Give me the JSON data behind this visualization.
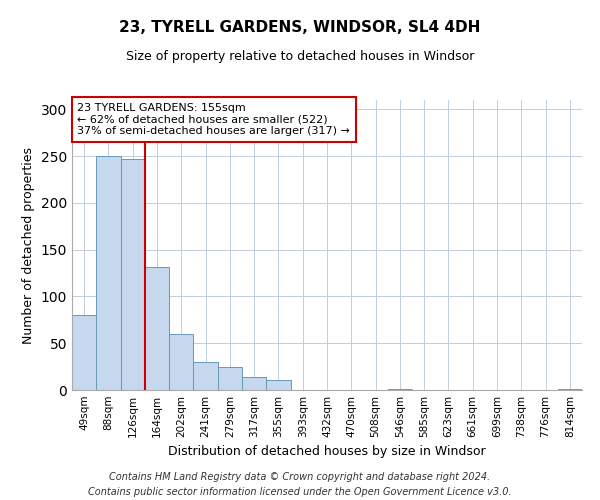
{
  "title": "23, TYRELL GARDENS, WINDSOR, SL4 4DH",
  "subtitle": "Size of property relative to detached houses in Windsor",
  "xlabel": "Distribution of detached houses by size in Windsor",
  "ylabel": "Number of detached properties",
  "bar_labels": [
    "49sqm",
    "88sqm",
    "126sqm",
    "164sqm",
    "202sqm",
    "241sqm",
    "279sqm",
    "317sqm",
    "355sqm",
    "393sqm",
    "432sqm",
    "470sqm",
    "508sqm",
    "546sqm",
    "585sqm",
    "623sqm",
    "661sqm",
    "699sqm",
    "738sqm",
    "776sqm",
    "814sqm"
  ],
  "bar_values": [
    80,
    250,
    247,
    132,
    60,
    30,
    25,
    14,
    11,
    0,
    0,
    0,
    0,
    1,
    0,
    0,
    0,
    0,
    0,
    0,
    1
  ],
  "bar_color": "#c5d8ed",
  "bar_edge_color": "#6699bb",
  "property_line_color": "#cc0000",
  "annotation_title": "23 TYRELL GARDENS: 155sqm",
  "annotation_line1": "← 62% of detached houses are smaller (522)",
  "annotation_line2": "37% of semi-detached houses are larger (317) →",
  "annotation_box_color": "#ffffff",
  "annotation_box_edge": "#cc0000",
  "ylim": [
    0,
    310
  ],
  "yticks": [
    0,
    50,
    100,
    150,
    200,
    250,
    300
  ],
  "footer1": "Contains HM Land Registry data © Crown copyright and database right 2024.",
  "footer2": "Contains public sector information licensed under the Open Government Licence v3.0.",
  "background_color": "#ffffff",
  "grid_color": "#c0cfe0"
}
